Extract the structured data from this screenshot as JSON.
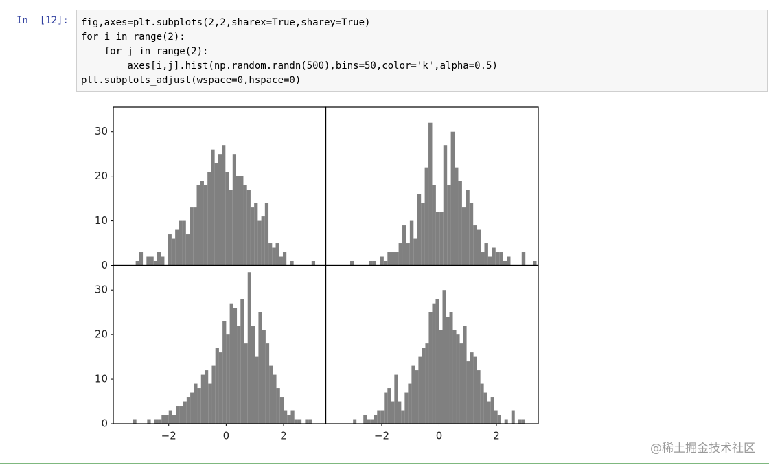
{
  "cell": {
    "prompt": "In  [12]:",
    "code_lines": [
      "fig,axes=plt.subplots(2,2,sharex=True,sharey=True)",
      "for i in range(2):",
      "    for j in range(2):",
      "        axes[i,j].hist(np.random.randn(500),bins=50,color='k',alpha=0.5)",
      "plt.subplots_adjust(wspace=0,hspace=0)"
    ]
  },
  "chart_data": [
    {
      "type": "histogram",
      "color": "#808080",
      "bins": [
        -3.15,
        -3.025,
        -2.9,
        -2.775,
        -2.65,
        -2.525,
        -2.4,
        -2.275,
        -2.15,
        -2.025,
        -1.9,
        -1.775,
        -1.65,
        -1.525,
        -1.4,
        -1.275,
        -1.15,
        -1.025,
        -0.9,
        -0.775,
        -0.65,
        -0.525,
        -0.4,
        -0.275,
        -0.15,
        -0.025,
        0.1,
        0.225,
        0.35,
        0.475,
        0.6,
        0.725,
        0.85,
        0.975,
        1.1,
        1.225,
        1.35,
        1.475,
        1.6,
        1.725,
        1.85,
        1.975,
        2.1,
        2.225,
        2.35,
        2.475,
        2.6,
        2.725,
        2.85,
        2.975,
        3.1
      ],
      "values": [
        1,
        3,
        0,
        2,
        2,
        1,
        3,
        2,
        0,
        7,
        6,
        8,
        10,
        10,
        7,
        13,
        13,
        18,
        19,
        18,
        21,
        26,
        23,
        25,
        27,
        21,
        17,
        25,
        20,
        20,
        18,
        17,
        13,
        14,
        10,
        11,
        14,
        5,
        4,
        5,
        2,
        3,
        0,
        1,
        0,
        0,
        0,
        0,
        0,
        1
      ],
      "xlim": [
        -3.93,
        3.47
      ],
      "ylim": [
        0,
        35.5
      ],
      "yticks": [
        0,
        10,
        20,
        30
      ]
    },
    {
      "type": "histogram",
      "color": "#808080",
      "bins": [
        -3.1,
        -2.97,
        -2.84,
        -2.71,
        -2.58,
        -2.45,
        -2.32,
        -2.19,
        -2.06,
        -1.93,
        -1.8,
        -1.67,
        -1.54,
        -1.41,
        -1.28,
        -1.15,
        -1.02,
        -0.89,
        -0.76,
        -0.63,
        -0.5,
        -0.37,
        -0.24,
        -0.11,
        0.02,
        0.15,
        0.28,
        0.41,
        0.54,
        0.67,
        0.8,
        0.93,
        1.06,
        1.19,
        1.32,
        1.45,
        1.58,
        1.71,
        1.84,
        1.97,
        2.1,
        2.23,
        2.36,
        2.49,
        2.62,
        2.75,
        2.88,
        3.01,
        3.14,
        3.27,
        3.4
      ],
      "values": [
        1,
        0,
        0,
        0,
        0,
        1,
        1,
        0,
        2,
        1,
        3,
        3,
        3,
        5,
        9,
        5,
        10,
        6,
        16,
        14,
        22,
        32,
        18,
        12,
        12,
        27,
        18,
        30,
        22,
        19,
        13,
        17,
        14,
        9,
        8,
        3,
        5,
        2,
        4,
        3,
        3,
        1,
        2,
        0,
        0,
        0,
        3,
        0,
        0,
        1
      ],
      "xlim": [
        -3.95,
        3.46
      ],
      "ylim": [
        0,
        35.5
      ]
    },
    {
      "type": "histogram",
      "color": "#808080",
      "bins": [
        -3.25,
        -3.125,
        -3.0,
        -2.875,
        -2.75,
        -2.625,
        -2.5,
        -2.375,
        -2.25,
        -2.125,
        -2.0,
        -1.875,
        -1.75,
        -1.625,
        -1.5,
        -1.375,
        -1.25,
        -1.125,
        -1.0,
        -0.875,
        -0.75,
        -0.625,
        -0.5,
        -0.375,
        -0.25,
        -0.125,
        0,
        0.125,
        0.25,
        0.375,
        0.5,
        0.625,
        0.75,
        0.875,
        1.0,
        1.125,
        1.25,
        1.375,
        1.5,
        1.625,
        1.75,
        1.875,
        2.0,
        2.125,
        2.25,
        2.375,
        2.5,
        2.625,
        2.75,
        2.875,
        3.0
      ],
      "values": [
        1,
        0,
        0,
        0,
        1,
        0,
        1,
        1,
        2,
        2,
        3,
        2,
        4,
        4,
        5,
        6,
        7,
        9,
        8,
        11,
        12,
        9,
        13,
        17,
        16,
        23,
        20,
        27,
        26,
        22,
        28,
        18,
        34,
        22,
        15,
        25,
        21,
        18,
        13,
        11,
        8,
        6,
        3,
        2,
        3,
        1,
        1,
        0,
        1,
        1
      ],
      "xlim": [
        -3.93,
        3.47
      ],
      "ylim": [
        0,
        35.5
      ],
      "yticks": [
        0,
        10,
        20,
        30
      ],
      "xticks": [
        {
          "value": -2,
          "label": "−2"
        },
        0,
        2
      ]
    },
    {
      "type": "histogram",
      "color": "#808080",
      "bins": [
        -3.0,
        -2.88,
        -2.76,
        -2.64,
        -2.52,
        -2.4,
        -2.28,
        -2.16,
        -2.04,
        -1.92,
        -1.8,
        -1.68,
        -1.56,
        -1.44,
        -1.32,
        -1.2,
        -1.08,
        -0.96,
        -0.84,
        -0.72,
        -0.6,
        -0.48,
        -0.36,
        -0.24,
        -0.12,
        0,
        0.12,
        0.24,
        0.36,
        0.48,
        0.6,
        0.72,
        0.84,
        0.96,
        1.08,
        1.2,
        1.32,
        1.44,
        1.56,
        1.68,
        1.8,
        1.92,
        2.04,
        2.16,
        2.28,
        2.4,
        2.52,
        2.64,
        2.76,
        2.88,
        3.0
      ],
      "values": [
        1,
        0,
        0,
        2,
        1,
        1,
        2,
        3,
        3,
        7,
        8,
        5,
        11,
        5,
        3,
        7,
        9,
        13,
        12,
        15,
        17,
        18,
        25,
        27,
        28,
        21,
        30,
        24,
        25,
        21,
        20,
        18,
        22,
        14,
        16,
        15,
        12,
        9,
        7,
        5,
        6,
        3,
        2,
        0,
        1,
        0,
        3,
        0,
        1,
        1
      ],
      "xlim": [
        -3.95,
        3.46
      ],
      "ylim": [
        0,
        35.5
      ],
      "xticks": [
        {
          "value": -2,
          "label": "−2"
        },
        0,
        2
      ]
    }
  ],
  "watermark": "@稀土掘金技术社区"
}
